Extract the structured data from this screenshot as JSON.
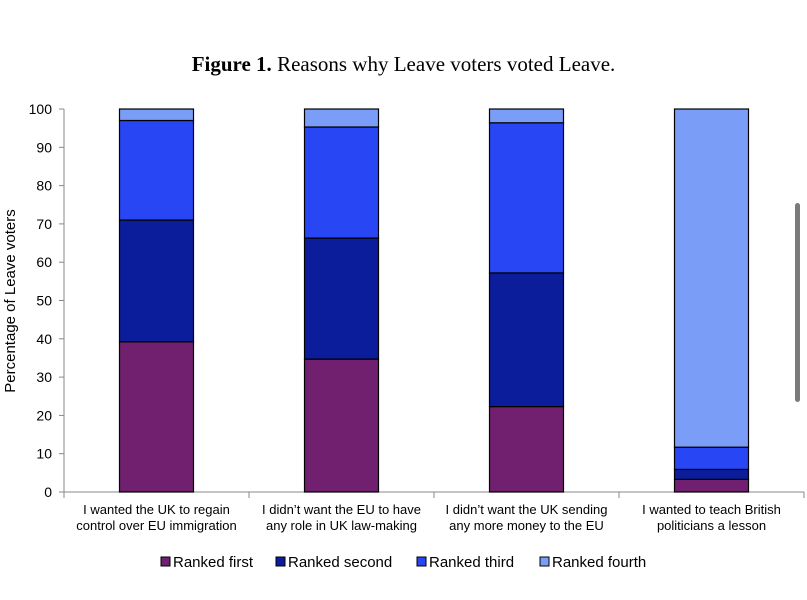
{
  "chart_data": {
    "type": "bar",
    "stacked": true,
    "title_prefix": "Figure 1.",
    "title": "Reasons why Leave voters voted Leave.",
    "ylabel": "Percentage of Leave voters",
    "xlabel": "",
    "ylim": [
      0,
      100
    ],
    "yticks": [
      0,
      10,
      20,
      30,
      40,
      50,
      60,
      70,
      80,
      90,
      100
    ],
    "categories": [
      [
        "I wanted the UK to regain",
        "control over EU immigration"
      ],
      [
        "I didn’t want the EU to have",
        "any role in UK law-making"
      ],
      [
        "I didn’t want the UK sending",
        "any more money to the EU"
      ],
      [
        "I wanted to teach British",
        "politicians a lesson"
      ]
    ],
    "series": [
      {
        "name": "Ranked first",
        "color": "#70206e",
        "values": [
          39.2,
          34.7,
          22.3,
          3.3
        ]
      },
      {
        "name": "Ranked second",
        "color": "#0b1d9b",
        "values": [
          31.8,
          31.6,
          34.9,
          2.6
        ]
      },
      {
        "name": "Ranked third",
        "color": "#2946f5",
        "values": [
          26.0,
          29.0,
          39.2,
          5.8
        ]
      },
      {
        "name": "Ranked fourth",
        "color": "#7a9ef7",
        "values": [
          3.0,
          4.7,
          3.6,
          88.3
        ]
      }
    ],
    "legend_position": "bottom",
    "grid": false
  }
}
